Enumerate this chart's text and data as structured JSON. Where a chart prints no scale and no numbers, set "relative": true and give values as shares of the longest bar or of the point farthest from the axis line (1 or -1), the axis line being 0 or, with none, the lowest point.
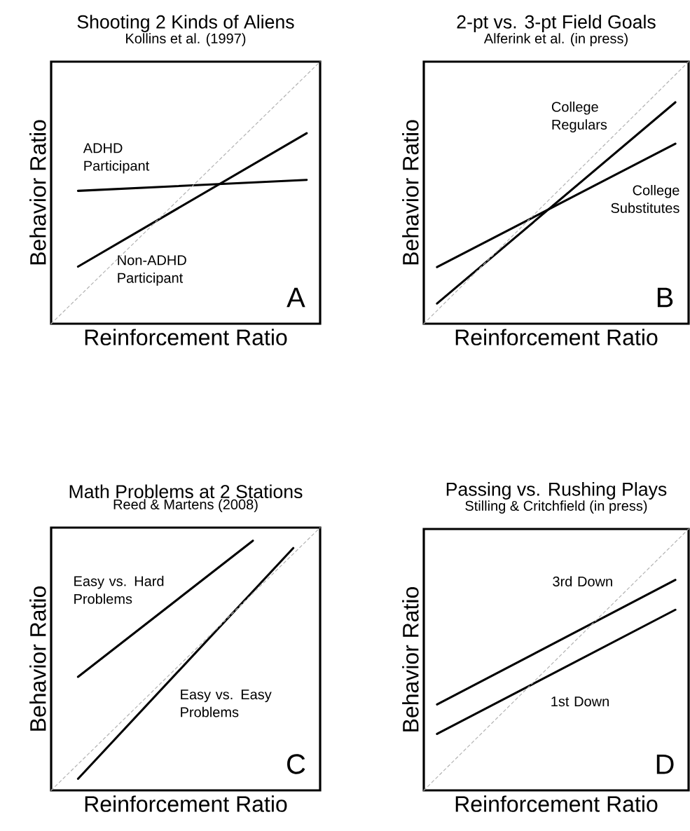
{
  "chart_data": [
    {
      "type": "line",
      "title": "Shooting 2 Kinds of Aliens",
      "subtitle": "Kollins et al. (1997)",
      "xlabel": "Reinforcement Ratio",
      "ylabel": "Behavior Ratio",
      "relative": true,
      "tick_labels": false,
      "annotations": [
        "A"
      ],
      "categories": [
        null,
        null,
        null,
        null,
        null,
        null,
        null,
        null,
        null,
        null,
        null,
        null,
        null,
        null,
        null,
        null,
        null,
        null,
        null,
        null,
        null
      ],
      "series": [
        {
          "name": "ADHD Participant",
          "color": "#000000",
          "values": [
            null,
            null,
            0.507,
            null,
            null,
            null,
            null,
            null,
            null,
            null,
            null,
            null,
            null,
            null,
            null,
            null,
            null,
            null,
            null,
            0.549,
            null
          ]
        },
        {
          "name": "Non-ADHD Participant",
          "color": "#000000",
          "values": [
            null,
            null,
            0.218,
            null,
            null,
            null,
            null,
            null,
            null,
            null,
            null,
            null,
            null,
            null,
            null,
            null,
            null,
            null,
            null,
            0.727,
            null
          ]
        },
        {
          "color": "#b3b3b3",
          "line_style": "dashed",
          "values": [
            0,
            null,
            null,
            null,
            null,
            null,
            null,
            null,
            null,
            null,
            null,
            null,
            null,
            null,
            null,
            null,
            null,
            null,
            null,
            null,
            1
          ]
        }
      ]
    },
    {
      "type": "line",
      "title": "2-pt vs. 3-pt Field Goals",
      "subtitle": "Alferink et al. (in press)",
      "xlabel": "Reinforcement Ratio",
      "ylabel": "Behavior Ratio",
      "relative": true,
      "tick_labels": false,
      "annotations": [
        "B"
      ],
      "categories": [
        null,
        null,
        null,
        null,
        null,
        null,
        null,
        null,
        null,
        null,
        null,
        null,
        null,
        null,
        null,
        null,
        null,
        null,
        null,
        null,
        null
      ],
      "series": [
        {
          "name": "College Regulars",
          "color": "#000000",
          "values": [
            null,
            0.077,
            null,
            null,
            null,
            null,
            null,
            null,
            null,
            null,
            null,
            null,
            null,
            null,
            null,
            null,
            null,
            null,
            null,
            0.845,
            null
          ]
        },
        {
          "name": "College Substitutes",
          "color": "#000000",
          "values": [
            null,
            0.216,
            null,
            null,
            null,
            null,
            null,
            null,
            null,
            null,
            null,
            null,
            null,
            null,
            null,
            null,
            null,
            null,
            null,
            0.687,
            null
          ]
        },
        {
          "color": "#b3b3b3",
          "line_style": "dashed",
          "values": [
            0,
            null,
            null,
            null,
            null,
            null,
            null,
            null,
            null,
            null,
            null,
            null,
            null,
            null,
            null,
            null,
            null,
            null,
            null,
            null,
            1
          ]
        }
      ]
    },
    {
      "type": "line",
      "title": "Math Problems at 2 Stations",
      "subtitle": "Reed & Martens (2008)",
      "xlabel": "Reinforcement Ratio",
      "ylabel": "Behavior Ratio",
      "relative": true,
      "tick_labels": false,
      "annotations": [
        "C"
      ],
      "categories": [
        null,
        null,
        null,
        null,
        null,
        null,
        null,
        null,
        null,
        null,
        null,
        null,
        null,
        null,
        null,
        null,
        null,
        null,
        null,
        null,
        null
      ],
      "series": [
        {
          "name": "Easy vs. Hard Problems",
          "color": "#000000",
          "values": [
            null,
            null,
            0.432,
            null,
            null,
            null,
            null,
            null,
            null,
            null,
            null,
            null,
            null,
            null,
            null,
            0.95,
            null,
            null,
            null,
            null,
            null
          ]
        },
        {
          "name": "Easy vs. Easy Problems",
          "color": "#000000",
          "values": [
            null,
            null,
            0.044,
            null,
            null,
            null,
            null,
            null,
            null,
            null,
            null,
            null,
            null,
            null,
            null,
            null,
            null,
            null,
            0.922,
            null,
            null
          ]
        },
        {
          "color": "#b3b3b3",
          "line_style": "dashed",
          "values": [
            0,
            null,
            null,
            null,
            null,
            null,
            null,
            null,
            null,
            null,
            null,
            null,
            null,
            null,
            null,
            null,
            null,
            null,
            null,
            null,
            1
          ]
        }
      ]
    },
    {
      "type": "line",
      "title": "Passing vs. Rushing Plays",
      "subtitle": "Stilling & Critchfield (in press)",
      "xlabel": "Reinforcement Ratio",
      "ylabel": "Behavior Ratio",
      "relative": true,
      "tick_labels": false,
      "annotations": [
        "D"
      ],
      "categories": [
        null,
        null,
        null,
        null,
        null,
        null,
        null,
        null,
        null,
        null,
        null,
        null,
        null,
        null,
        null,
        null,
        null,
        null,
        null,
        null,
        null
      ],
      "series": [
        {
          "name": "3rd Down",
          "color": "#000000",
          "values": [
            null,
            0.329,
            null,
            null,
            null,
            null,
            null,
            null,
            null,
            null,
            null,
            null,
            null,
            null,
            null,
            null,
            null,
            null,
            null,
            0.805,
            null
          ]
        },
        {
          "name": "1st Down",
          "color": "#000000",
          "values": [
            null,
            0.216,
            null,
            null,
            null,
            null,
            null,
            null,
            null,
            null,
            null,
            null,
            null,
            null,
            null,
            null,
            null,
            null,
            null,
            0.691,
            null
          ]
        },
        {
          "color": "#b3b3b3",
          "line_style": "dashed",
          "values": [
            0,
            null,
            null,
            null,
            null,
            null,
            null,
            null,
            null,
            null,
            null,
            null,
            null,
            null,
            null,
            null,
            null,
            null,
            null,
            null,
            1
          ]
        }
      ]
    }
  ]
}
